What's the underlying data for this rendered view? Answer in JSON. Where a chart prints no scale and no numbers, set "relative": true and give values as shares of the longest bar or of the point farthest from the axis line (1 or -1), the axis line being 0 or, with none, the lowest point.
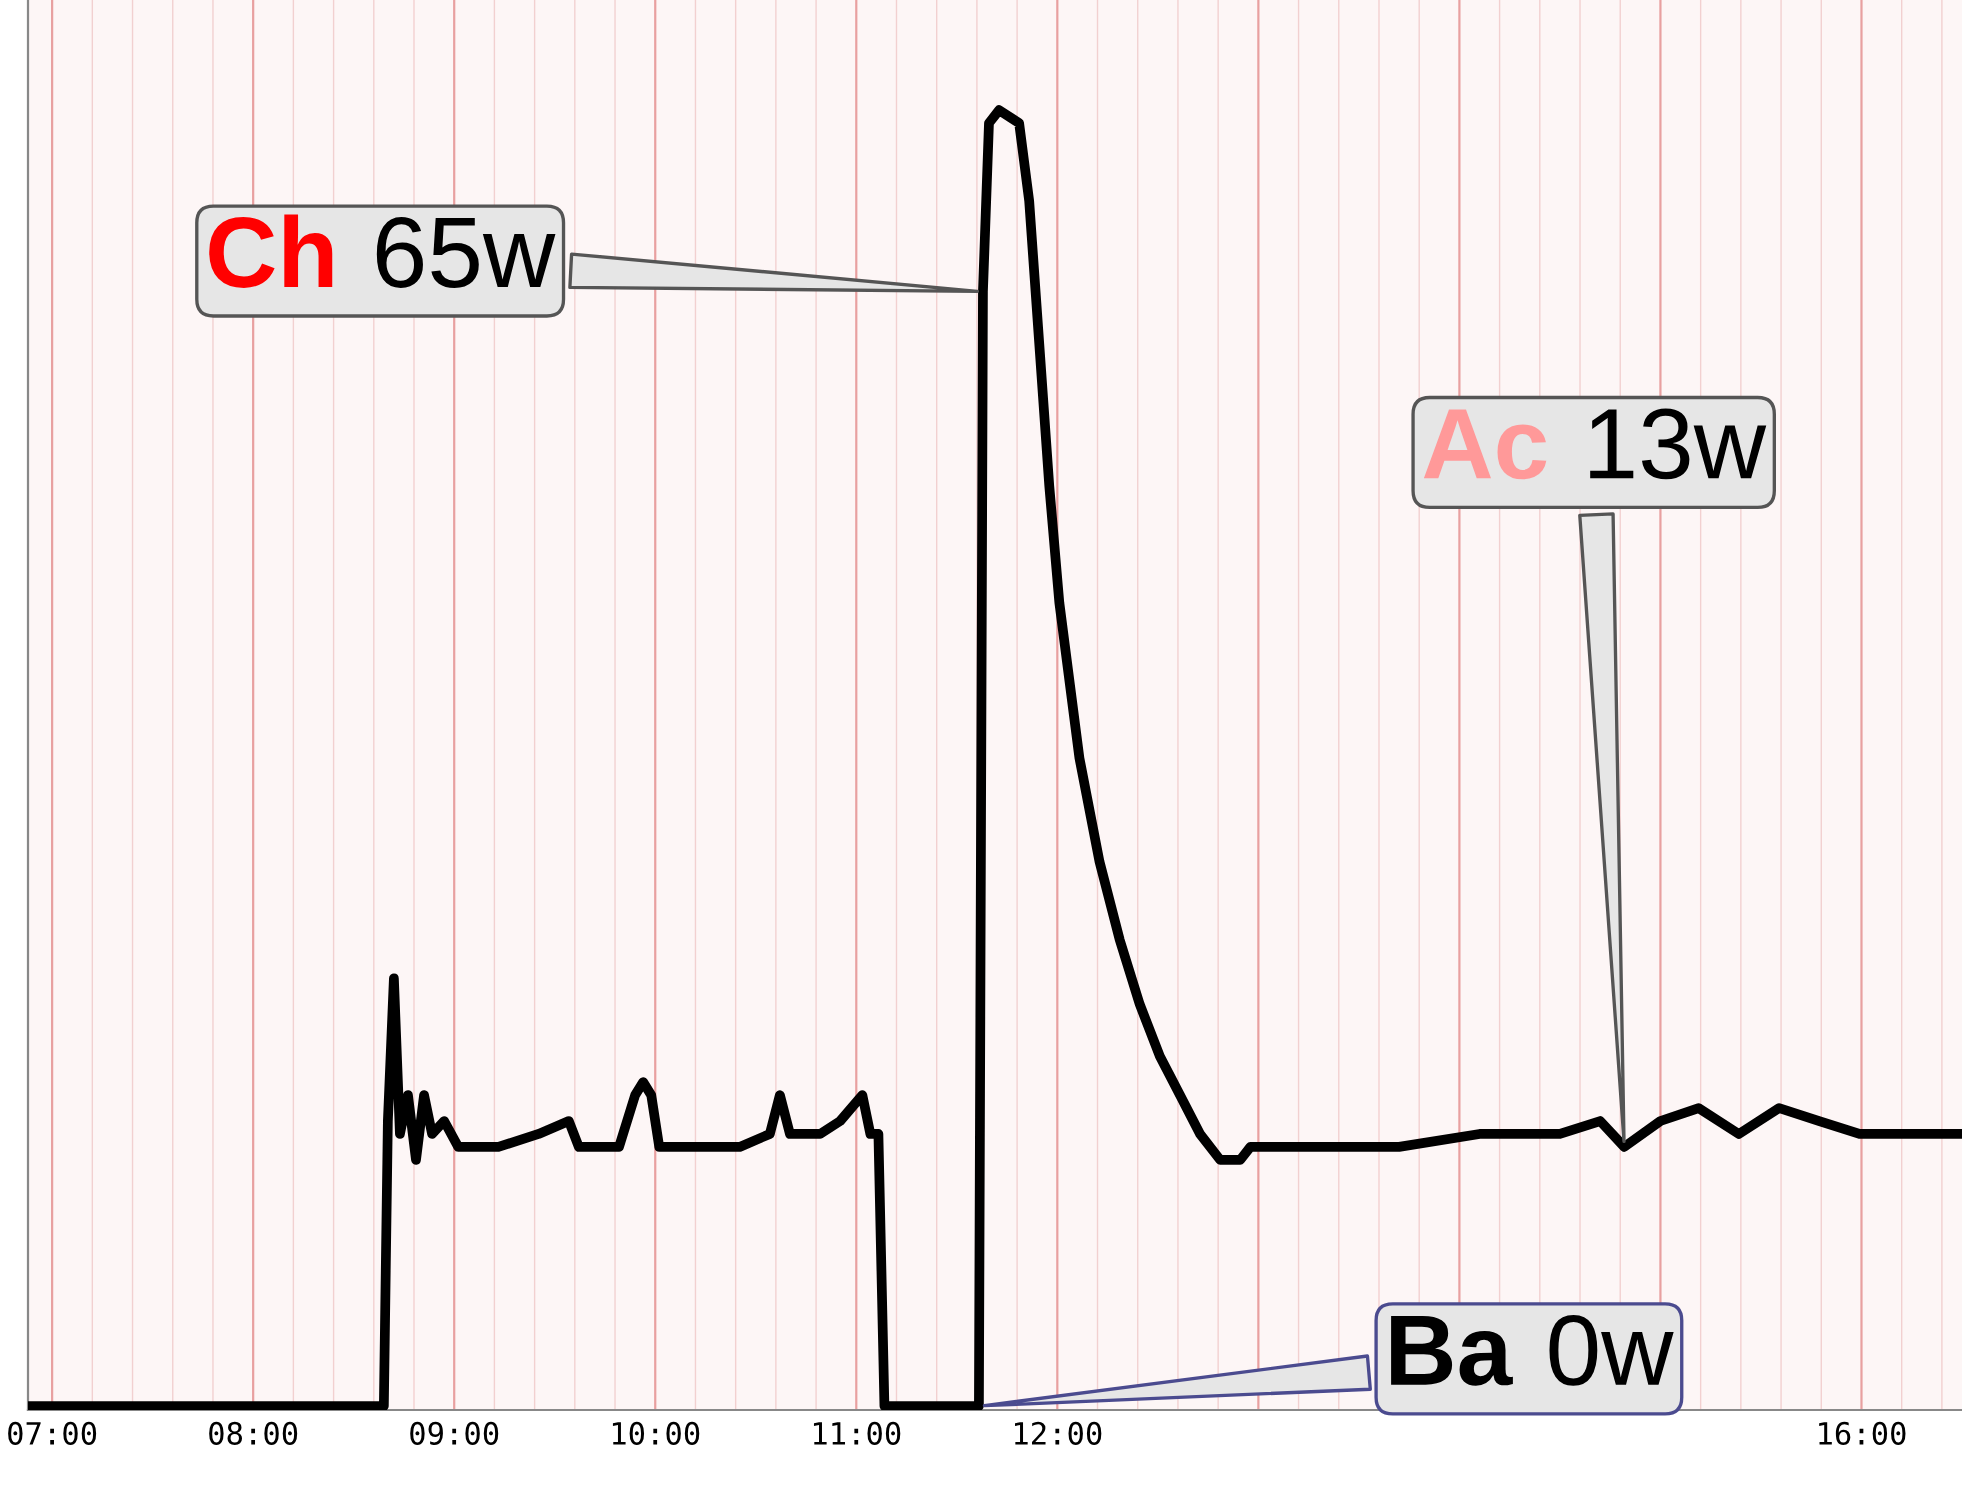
{
  "chart_data": {
    "type": "line",
    "relative": true,
    "grid": true,
    "marker": "none",
    "line_style": "solid",
    "xlim": [
      6.88,
      16.5
    ],
    "xticks": [
      {
        "value": 7,
        "label": "07:00"
      },
      {
        "value": 8,
        "label": "08:00"
      },
      {
        "value": 9,
        "label": "09:00"
      },
      {
        "value": 10,
        "label": "10:00"
      },
      {
        "value": 11,
        "label": "11:00"
      },
      {
        "value": 12,
        "label": "12:00"
      },
      {
        "value": 13,
        "label": null
      },
      {
        "value": 14,
        "label": null
      },
      {
        "value": 15,
        "label": null
      },
      {
        "value": 16,
        "label": "16:00"
      }
    ],
    "series": [
      {
        "color": "#000000",
        "x": [
          6.88,
          8.65,
          8.67,
          8.7,
          8.73,
          8.77,
          8.81,
          8.85,
          8.89,
          8.95,
          9.02,
          9.22,
          9.42,
          9.57,
          9.62,
          9.82,
          9.9,
          9.94,
          9.98,
          10.02,
          10.22,
          10.42,
          10.57,
          10.62,
          10.67,
          10.82,
          10.92,
          11.03,
          11.07,
          11.11,
          11.14,
          11.61,
          11.63,
          11.66,
          11.71,
          11.81,
          11.86,
          11.91,
          11.96,
          12.01,
          12.11,
          12.21,
          12.31,
          12.41,
          12.51,
          12.61,
          12.71,
          12.81,
          12.91,
          12.96,
          13.1,
          13.3,
          13.7,
          14.1,
          14.5,
          14.7,
          14.82,
          15.0,
          15.19,
          15.39,
          15.59,
          15.79,
          15.99,
          16.19,
          16.5
        ],
        "values": [
          0,
          0,
          0.22,
          0.33,
          0.21,
          0.24,
          0.19,
          0.24,
          0.21,
          0.22,
          0.2,
          0.2,
          0.21,
          0.22,
          0.2,
          0.2,
          0.24,
          0.25,
          0.24,
          0.2,
          0.2,
          0.2,
          0.21,
          0.24,
          0.21,
          0.21,
          0.22,
          0.24,
          0.21,
          0.21,
          0,
          0,
          0.86,
          0.99,
          1,
          0.99,
          0.93,
          0.82,
          0.71,
          0.62,
          0.5,
          0.42,
          0.36,
          0.31,
          0.27,
          0.24,
          0.21,
          0.19,
          0.19,
          0.2,
          0.2,
          0.2,
          0.2,
          0.21,
          0.21,
          0.22,
          0.2,
          0.22,
          0.23,
          0.21,
          0.23,
          0.22,
          0.21,
          0.21,
          0.21
        ]
      }
    ],
    "annotations": [
      {
        "text": "Ch 65w",
        "x": 11.63,
        "y": 0.86
      },
      {
        "text": "Ac 13w",
        "x": 14.82,
        "y": 0.2
      },
      {
        "text": "Ba 0w",
        "x": 11.61,
        "y": 0
      }
    ]
  }
}
